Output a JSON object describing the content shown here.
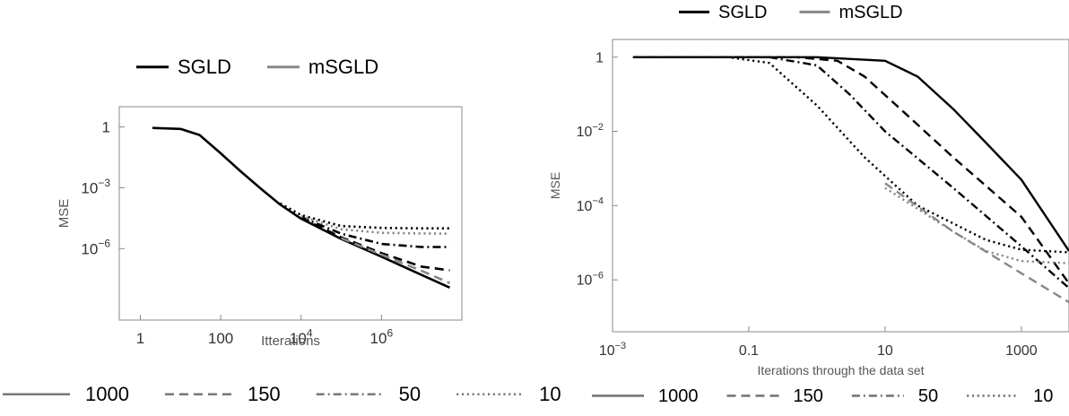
{
  "chart_data": [
    {
      "type": "line",
      "title": "",
      "xlabel": "Itterations",
      "ylabel": "MSE",
      "xscale": "log",
      "yscale": "log",
      "xlim": [
        0.3,
        100000000
      ],
      "ylim": [
        3e-10,
        10
      ],
      "x_ticks": [
        {
          "value": 1,
          "label": "1"
        },
        {
          "value": 100,
          "label": "100"
        },
        {
          "value": 10000,
          "label_base": "10",
          "label_exp": "4"
        },
        {
          "value": 1000000,
          "label_base": "10",
          "label_exp": "6"
        }
      ],
      "y_ticks": [
        {
          "value": 1,
          "label": "1"
        },
        {
          "value": 0.001,
          "label_base": "10",
          "label_exp": "−3"
        },
        {
          "value": 1e-06,
          "label_base": "10",
          "label_exp": "−6"
        }
      ],
      "legend_methods": {
        "placement": "top",
        "entries": [
          {
            "label": "SGLD",
            "color": "#000000"
          },
          {
            "label": "mSGLD",
            "color": "#888888"
          }
        ]
      },
      "legend_sizes": {
        "placement": "bottom",
        "entries": [
          {
            "label": "1000",
            "dash": "solid"
          },
          {
            "label": "150",
            "dash": "dashed"
          },
          {
            "label": "50",
            "dash": "dashdot"
          },
          {
            "label": "10",
            "dash": "dotted"
          }
        ]
      },
      "series": [
        {
          "method": "SGLD",
          "size": "1000",
          "color": "#000000",
          "dash": "solid",
          "x": [
            2,
            10,
            30,
            100,
            300,
            1000,
            3000,
            10000,
            100000,
            1000000,
            10000000,
            50000000
          ],
          "y": [
            0.9,
            0.8,
            0.4,
            0.05,
            0.007,
            0.0009,
            0.00015,
            3e-05,
            3e-06,
            4e-07,
            5e-08,
            1.2e-08
          ]
        },
        {
          "method": "SGLD",
          "size": "150",
          "color": "#000000",
          "dash": "dashed",
          "x": [
            10000,
            100000,
            1000000,
            10000000,
            50000000
          ],
          "y": [
            3.3e-05,
            3.6e-06,
            6e-07,
            1.3e-07,
            8.5e-08
          ]
        },
        {
          "method": "SGLD",
          "size": "50",
          "color": "#000000",
          "dash": "dashdot",
          "x": [
            10000,
            100000,
            1000000,
            10000000,
            50000000
          ],
          "y": [
            3.6e-05,
            5.5e-06,
            1.7e-06,
            1.2e-06,
            1.2e-06
          ]
        },
        {
          "method": "SGLD",
          "size": "10",
          "color": "#000000",
          "dash": "dotted",
          "x": [
            3000,
            10000,
            100000,
            1000000,
            10000000,
            50000000
          ],
          "y": [
            0.00017,
            4.5e-05,
            1.3e-05,
            1.05e-05,
            1e-05,
            1e-05
          ]
        },
        {
          "method": "mSGLD",
          "size": "150",
          "color": "#888888",
          "dash": "dashed",
          "x": [
            100000,
            1000000,
            10000000,
            50000000
          ],
          "y": [
            3.3e-06,
            5e-07,
            8e-08,
            2e-08
          ]
        },
        {
          "method": "mSGLD",
          "size": "10",
          "color": "#888888",
          "dash": "dotted",
          "x": [
            10000,
            100000,
            1000000,
            10000000,
            50000000
          ],
          "y": [
            4e-05,
            9e-06,
            6e-06,
            5.6e-06,
            5.5e-06
          ]
        }
      ]
    },
    {
      "type": "line",
      "title": "",
      "xlabel": "Iterations through the data set",
      "ylabel": "MSE",
      "xscale": "log",
      "yscale": "log",
      "xlim": [
        0.001,
        5000
      ],
      "ylim": [
        4e-08,
        3
      ],
      "x_ticks": [
        {
          "value": 0.001,
          "label_base": "10",
          "label_exp": "−3"
        },
        {
          "value": 0.1,
          "label": "0.1"
        },
        {
          "value": 10,
          "label": "10"
        },
        {
          "value": 1000,
          "label": "1000"
        }
      ],
      "y_ticks": [
        {
          "value": 1,
          "label": "1"
        },
        {
          "value": 0.01,
          "label_base": "10",
          "label_exp": "−2"
        },
        {
          "value": 0.0001,
          "label_base": "10",
          "label_exp": "−4"
        },
        {
          "value": 1e-06,
          "label_base": "10",
          "label_exp": "−6"
        }
      ],
      "legend_methods": {
        "placement": "top",
        "entries": [
          {
            "label": "SGLD",
            "color": "#000000"
          },
          {
            "label": "mSGLD",
            "color": "#888888"
          }
        ]
      },
      "legend_sizes": {
        "placement": "bottom",
        "entries": [
          {
            "label": "1000",
            "dash": "solid"
          },
          {
            "label": "150",
            "dash": "dashed"
          },
          {
            "label": "50",
            "dash": "dashdot"
          },
          {
            "label": "10",
            "dash": "dotted"
          }
        ]
      },
      "series": [
        {
          "method": "SGLD",
          "size": "1000",
          "color": "#000000",
          "dash": "solid",
          "x": [
            0.002,
            1,
            10,
            30,
            100,
            300,
            1000,
            5000
          ],
          "y": [
            1,
            1,
            0.8,
            0.3,
            0.04,
            0.005,
            0.0005,
            6e-06
          ]
        },
        {
          "method": "SGLD",
          "size": "150",
          "color": "#000000",
          "dash": "dashed",
          "x": [
            0.002,
            0.5,
            2,
            5,
            20,
            100,
            1000,
            5000
          ],
          "y": [
            1,
            1,
            0.8,
            0.3,
            0.03,
            0.002,
            5e-05,
            8e-07
          ]
        },
        {
          "method": "SGLD",
          "size": "50",
          "color": "#000000",
          "dash": "dashdot",
          "x": [
            0.002,
            0.2,
            1,
            3,
            10,
            100,
            1000,
            5000
          ],
          "y": [
            1,
            1,
            0.6,
            0.1,
            0.01,
            0.0003,
            8e-06,
            6e-07
          ]
        },
        {
          "method": "SGLD",
          "size": "10",
          "color": "#000000",
          "dash": "dotted",
          "x": [
            0.002,
            0.05,
            0.2,
            1,
            5,
            30,
            300,
            1000,
            5000
          ],
          "y": [
            1,
            1,
            0.7,
            0.05,
            0.002,
            0.0001,
            1.2e-05,
            6.5e-06,
            5.5e-06
          ]
        },
        {
          "method": "mSGLD",
          "size": "150",
          "color": "#888888",
          "dash": "dashed",
          "x": [
            10,
            100,
            1000,
            5000
          ],
          "y": [
            0.0004,
            2e-05,
            1.5e-06,
            2.5e-07
          ]
        },
        {
          "method": "mSGLD",
          "size": "10",
          "color": "#888888",
          "dash": "dotted",
          "x": [
            10,
            100,
            300,
            1000,
            5000
          ],
          "y": [
            0.0003,
            2e-05,
            6e-06,
            3.2e-06,
            2.8e-06
          ]
        }
      ]
    }
  ]
}
